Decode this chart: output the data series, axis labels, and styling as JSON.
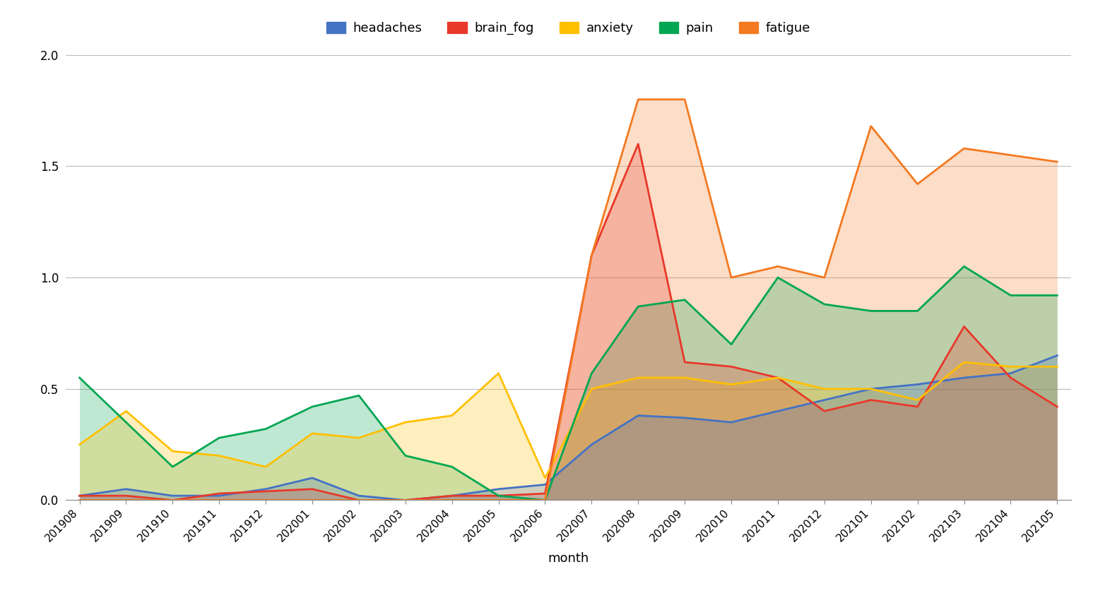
{
  "months": [
    "201908",
    "201909",
    "201910",
    "201911",
    "201912",
    "202001",
    "202002",
    "202003",
    "202004",
    "202005",
    "202006",
    "202007",
    "202008",
    "202009",
    "202010",
    "202011",
    "202012",
    "202101",
    "202102",
    "202103",
    "202104",
    "202105"
  ],
  "headaches": [
    0.02,
    0.05,
    0.02,
    0.02,
    0.05,
    0.1,
    0.02,
    0.0,
    0.02,
    0.05,
    0.07,
    0.25,
    0.38,
    0.37,
    0.35,
    0.4,
    0.45,
    0.5,
    0.52,
    0.55,
    0.57,
    0.65
  ],
  "brain_fog": [
    0.02,
    0.02,
    0.0,
    0.03,
    0.04,
    0.05,
    0.0,
    0.0,
    0.02,
    0.02,
    0.03,
    1.1,
    1.6,
    0.62,
    0.6,
    0.55,
    0.4,
    0.45,
    0.42,
    0.78,
    0.55,
    0.42
  ],
  "anxiety": [
    0.25,
    0.4,
    0.22,
    0.2,
    0.15,
    0.3,
    0.28,
    0.35,
    0.38,
    0.57,
    0.1,
    0.5,
    0.55,
    0.55,
    0.52,
    0.55,
    0.5,
    0.5,
    0.45,
    0.62,
    0.6,
    0.6
  ],
  "pain": [
    0.55,
    0.35,
    0.15,
    0.28,
    0.32,
    0.42,
    0.47,
    0.2,
    0.15,
    0.02,
    0.0,
    0.57,
    0.87,
    0.9,
    0.7,
    1.0,
    0.88,
    0.85,
    0.85,
    1.05,
    0.92,
    0.92
  ],
  "fatigue": [
    0.0,
    0.0,
    0.0,
    0.0,
    0.0,
    0.0,
    0.0,
    0.0,
    0.0,
    0.0,
    0.0,
    1.1,
    1.8,
    1.8,
    1.0,
    1.05,
    1.0,
    1.68,
    1.42,
    1.58,
    1.55,
    1.52
  ],
  "colors": {
    "headaches": "#4472C4",
    "brain_fog": "#E8382A",
    "anxiety": "#FFC000",
    "pain": "#00A651",
    "fatigue": "#F47920"
  },
  "xlabel": "month",
  "ylim": [
    0.0,
    2.0
  ],
  "yticks": [
    0.0,
    0.5,
    1.0,
    1.5,
    2.0
  ],
  "background_color": "#ffffff",
  "grid_color": "#bbbbbb",
  "fill_alpha": 0.25,
  "line_width": 2.0,
  "legend_order": [
    "headaches",
    "brain_fog",
    "anxiety",
    "pain",
    "fatigue"
  ],
  "fill_order": [
    "fatigue",
    "pain",
    "anxiety",
    "brain_fog",
    "headaches"
  ],
  "line_order": [
    "headaches",
    "brain_fog",
    "anxiety",
    "pain",
    "fatigue"
  ]
}
